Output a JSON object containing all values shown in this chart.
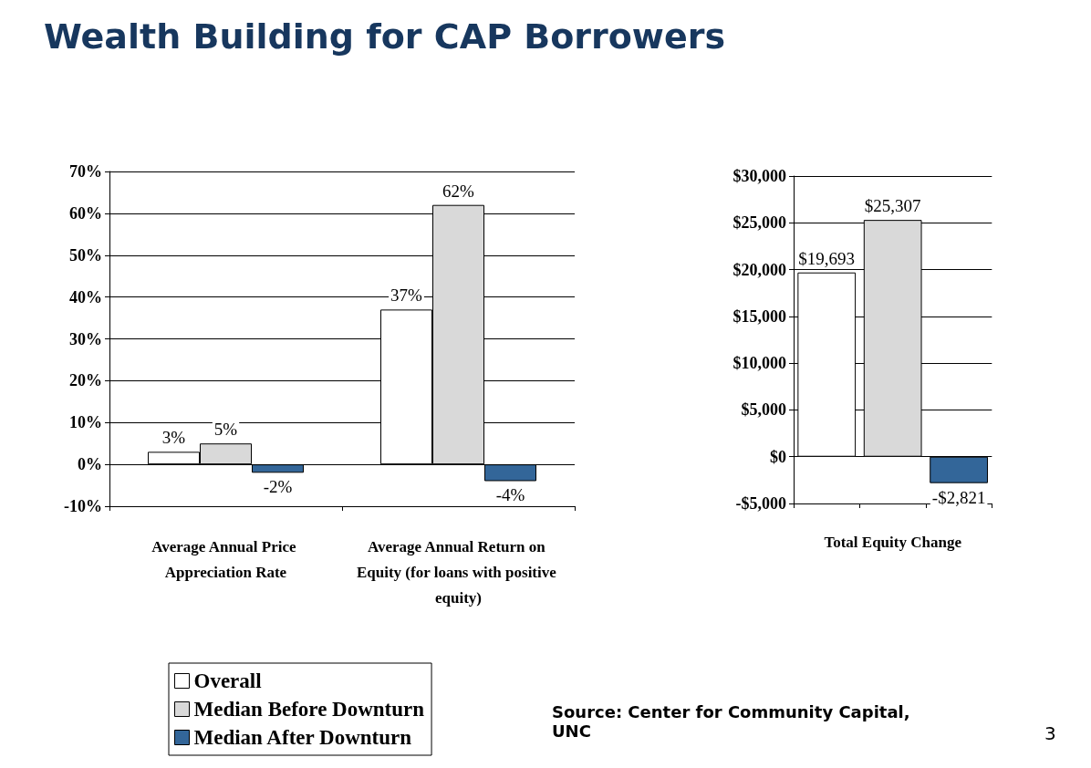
{
  "chart_data": [
    {
      "type": "bar",
      "title": "Wealth Building for CAP Borrowers",
      "categories": [
        "Average Annual Price Appreciation Rate",
        "Average Annual Return on Equity (for loans with positive equity)"
      ],
      "series": [
        {
          "name": "Overall",
          "color": "#ffffff",
          "values": [
            3,
            37
          ],
          "value_labels": [
            "3%",
            "37%"
          ]
        },
        {
          "name": "Median Before Downturn",
          "color": "#d9d9d9",
          "values": [
            5,
            62
          ],
          "value_labels": [
            "5%",
            "62%"
          ]
        },
        {
          "name": "Median After Downturn",
          "color": "#336699",
          "values": [
            -2,
            -4
          ],
          "value_labels": [
            "-2%",
            "-4%"
          ]
        }
      ],
      "ylim": [
        -10,
        70
      ],
      "yticks": [
        {
          "value": -10,
          "label": "-10%"
        },
        {
          "value": 0,
          "label": "0%"
        },
        {
          "value": 10,
          "label": "10%"
        },
        {
          "value": 20,
          "label": "20%"
        },
        {
          "value": 30,
          "label": "30%"
        },
        {
          "value": 40,
          "label": "40%"
        },
        {
          "value": 50,
          "label": "50%"
        },
        {
          "value": 60,
          "label": "60%"
        },
        {
          "value": 70,
          "label": "70%"
        }
      ],
      "grid": "y",
      "legend": "bottom"
    },
    {
      "type": "bar",
      "categories": [
        null,
        "Total Equity Change",
        null
      ],
      "values": [
        19693,
        25307,
        -2821
      ],
      "colors": [
        "#ffffff",
        "#d9d9d9",
        "#336699"
      ],
      "value_labels": [
        "$19,693",
        "$25,307",
        "-$2,821"
      ],
      "ylim": [
        -5000,
        30000
      ],
      "yticks": [
        {
          "value": -5000,
          "label": "-$5,000"
        },
        {
          "value": 0,
          "label": "$0"
        },
        {
          "value": 5000,
          "label": "$5,000"
        },
        {
          "value": 10000,
          "label": "$10,000"
        },
        {
          "value": 15000,
          "label": "$15,000"
        },
        {
          "value": 20000,
          "label": "$20,000"
        },
        {
          "value": 25000,
          "label": "$25,000"
        },
        {
          "value": 30000,
          "label": "$30,000"
        }
      ],
      "grid": "y",
      "legend": false,
      "annotations": [
        "Source:  Center for Community Capital, UNC",
        "3"
      ]
    }
  ]
}
